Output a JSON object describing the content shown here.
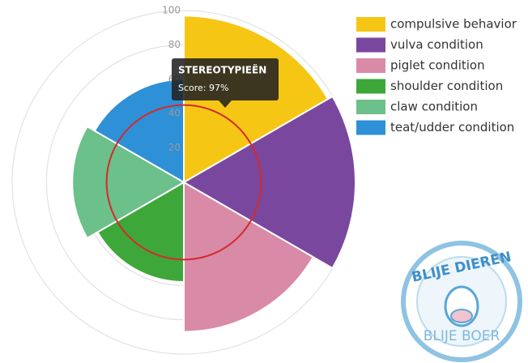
{
  "chart_data": {
    "type": "polar_area",
    "categories": [
      "compulsive behavior",
      "vulva condition",
      "piglet condition",
      "shoulder condition",
      "claw condition",
      "teat/udder condition"
    ],
    "values": [
      97,
      100,
      87,
      58,
      65,
      60
    ],
    "colors": [
      "#f6c615",
      "#7a479f",
      "#d98aa6",
      "#3ea73a",
      "#6cc08a",
      "#2e90d6"
    ],
    "rlim": [
      0,
      100
    ],
    "rticks": [
      20,
      40,
      60,
      80,
      100
    ],
    "grid": true,
    "threshold": 45,
    "threshold_color": "#d42a2a",
    "tooltip": {
      "title": "STEREOTYPIEËN",
      "text": "Score: 97%"
    }
  },
  "logo": {
    "top": "BLIJE DIEREN",
    "bottom": "BLIJE BOER"
  }
}
